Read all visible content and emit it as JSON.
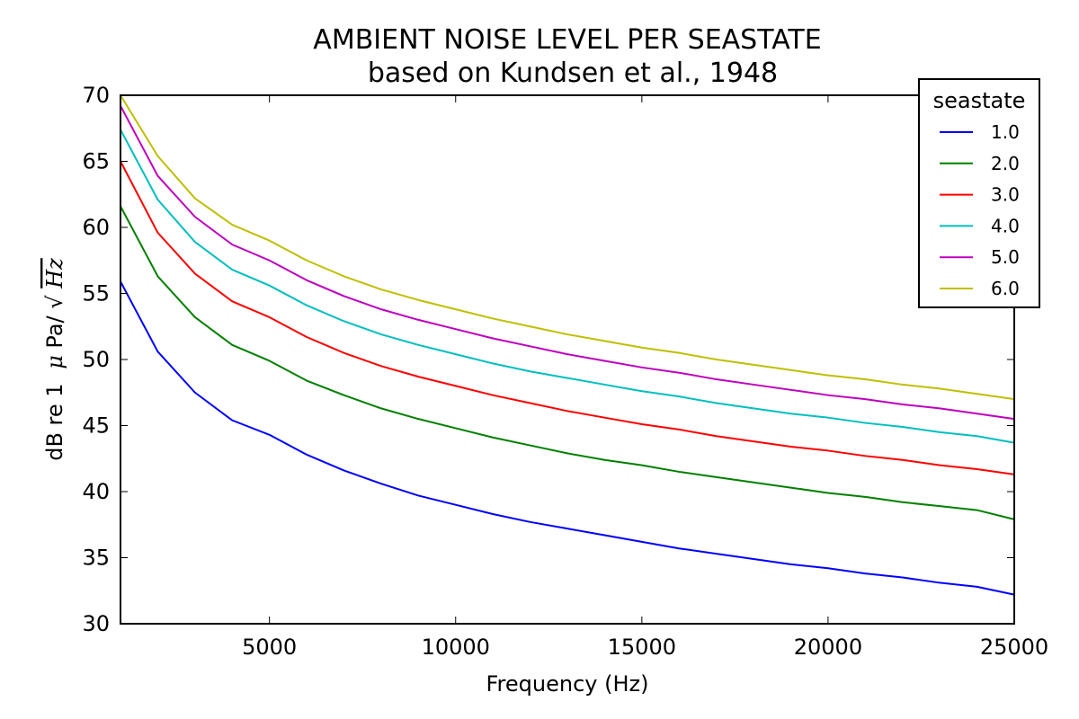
{
  "chart_data": {
    "type": "line",
    "title": "AMBIENT NOISE LEVEL PER SEASTATE",
    "subtitle": "based on Kundsen et al., 1948",
    "xlabel": "Frequency (Hz)",
    "ylabel": {
      "prefix": "dB re 1",
      "mu": "μ",
      "unit": "Pa/",
      "sqrt": "√",
      "radicand": "Hz"
    },
    "xlim": [
      1000,
      25000
    ],
    "ylim": [
      30,
      70
    ],
    "x_ticks": [
      5000,
      10000,
      15000,
      20000,
      25000
    ],
    "x_tick_labels": [
      "5000",
      "10000",
      "15000",
      "20000",
      "25000"
    ],
    "y_ticks": [
      30,
      35,
      40,
      45,
      50,
      55,
      60,
      65,
      70
    ],
    "y_tick_labels": [
      "30",
      "35",
      "40",
      "45",
      "50",
      "55",
      "60",
      "65",
      "70"
    ],
    "grid": false,
    "legend": {
      "title": "seastate",
      "placement": "top-right"
    },
    "x": [
      1000,
      2000,
      3000,
      4000,
      5000,
      6000,
      7000,
      8000,
      9000,
      10000,
      11000,
      12000,
      13000,
      14000,
      15000,
      16000,
      17000,
      18000,
      19000,
      20000,
      21000,
      22000,
      23000,
      24000,
      25000
    ],
    "series": [
      {
        "name": "1.0",
        "color": "#0000ff",
        "values": [
          55.9,
          50.6,
          47.5,
          45.4,
          44.3,
          42.8,
          41.6,
          40.6,
          39.7,
          39.0,
          38.3,
          37.7,
          37.2,
          36.7,
          36.2,
          35.7,
          35.3,
          34.9,
          34.5,
          34.2,
          33.8,
          33.5,
          33.1,
          32.8,
          32.2
        ]
      },
      {
        "name": "2.0",
        "color": "#008000",
        "values": [
          61.6,
          56.3,
          53.2,
          51.1,
          49.9,
          48.4,
          47.3,
          46.3,
          45.5,
          44.8,
          44.1,
          43.5,
          42.9,
          42.4,
          42.0,
          41.5,
          41.1,
          40.7,
          40.3,
          39.9,
          39.6,
          39.2,
          38.9,
          38.6,
          37.9
        ]
      },
      {
        "name": "3.0",
        "color": "#ff0000",
        "values": [
          65.0,
          59.6,
          56.5,
          54.4,
          53.2,
          51.7,
          50.5,
          49.5,
          48.7,
          48.0,
          47.3,
          46.7,
          46.1,
          45.6,
          45.1,
          44.7,
          44.2,
          43.8,
          43.4,
          43.1,
          42.7,
          42.4,
          42.0,
          41.7,
          41.3
        ]
      },
      {
        "name": "4.0",
        "color": "#00bfbf",
        "values": [
          67.4,
          62.1,
          58.9,
          56.8,
          55.6,
          54.1,
          52.9,
          51.9,
          51.1,
          50.4,
          49.7,
          49.1,
          48.6,
          48.1,
          47.6,
          47.2,
          46.7,
          46.3,
          45.9,
          45.6,
          45.2,
          44.9,
          44.5,
          44.2,
          43.7
        ]
      },
      {
        "name": "5.0",
        "color": "#bf00bf",
        "values": [
          69.2,
          63.9,
          60.8,
          58.7,
          57.5,
          56.0,
          54.8,
          53.8,
          53.0,
          52.3,
          51.6,
          51.0,
          50.4,
          49.9,
          49.4,
          49.0,
          48.5,
          48.1,
          47.7,
          47.3,
          47.0,
          46.6,
          46.3,
          45.9,
          45.5
        ]
      },
      {
        "name": "6.0",
        "color": "#bfbf00",
        "values": [
          70.0,
          65.4,
          62.2,
          60.2,
          59.0,
          57.5,
          56.3,
          55.3,
          54.5,
          53.8,
          53.1,
          52.5,
          51.9,
          51.4,
          50.9,
          50.5,
          50.0,
          49.6,
          49.2,
          48.8,
          48.5,
          48.1,
          47.8,
          47.4,
          47.0
        ]
      }
    ]
  }
}
